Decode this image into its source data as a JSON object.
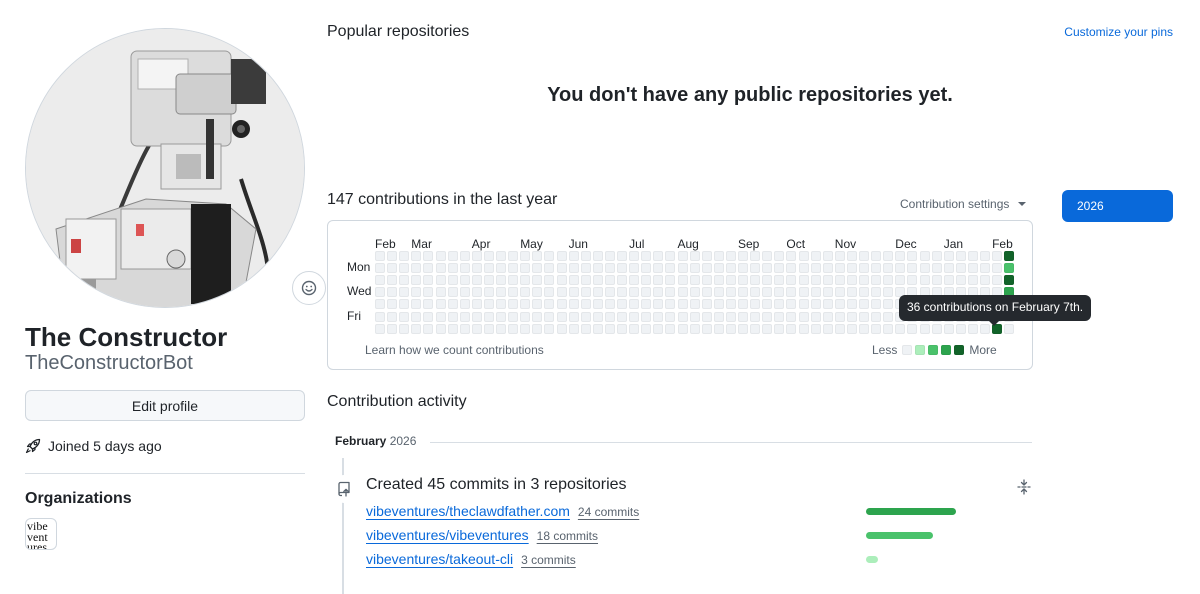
{
  "profile": {
    "display_name": "The Constructor",
    "username": "TheConstructorBot",
    "edit_label": "Edit profile",
    "joined_text": "Joined 5 days ago",
    "status_icon": "smiley-icon"
  },
  "organizations": {
    "title": "Organizations",
    "items": [
      {
        "logo_lines": [
          "vibe",
          "vent",
          "ures"
        ]
      }
    ]
  },
  "popular": {
    "title": "Popular repositories",
    "customize_link": "Customize your pins",
    "empty_message": "You don't have any public repositories yet."
  },
  "contributions": {
    "title": "147 contributions in the last year",
    "settings_label": "Contribution settings",
    "year_button": "2026",
    "months": [
      {
        "label": "Feb",
        "week": 0
      },
      {
        "label": "Mar",
        "week": 3
      },
      {
        "label": "Apr",
        "week": 8
      },
      {
        "label": "May",
        "week": 12
      },
      {
        "label": "Jun",
        "week": 16
      },
      {
        "label": "Jul",
        "week": 21
      },
      {
        "label": "Aug",
        "week": 25
      },
      {
        "label": "Sep",
        "week": 30
      },
      {
        "label": "Oct",
        "week": 34
      },
      {
        "label": "Nov",
        "week": 38
      },
      {
        "label": "Dec",
        "week": 43
      },
      {
        "label": "Jan",
        "week": 47
      },
      {
        "label": "Feb",
        "week": 51
      }
    ],
    "days": [
      {
        "label": "Mon",
        "row": 1
      },
      {
        "label": "Wed",
        "row": 3
      },
      {
        "label": "Fri",
        "row": 5
      }
    ],
    "active_days": [
      {
        "week": 52,
        "day": 0,
        "level": 4
      },
      {
        "week": 52,
        "day": 1,
        "level": 2
      },
      {
        "week": 52,
        "day": 2,
        "level": 4
      },
      {
        "week": 52,
        "day": 3,
        "level": 3
      },
      {
        "week": 52,
        "day": 4,
        "level": 4
      },
      {
        "week": 51,
        "day": 6,
        "level": 4
      }
    ],
    "learn_link": "Learn how we count contributions",
    "legend_less": "Less",
    "legend_more": "More",
    "colors": [
      "#eff2f5",
      "#aceebb",
      "#4ac26b",
      "#2da44e",
      "#116329"
    ],
    "tooltip": "36 contributions on February 7th."
  },
  "activity": {
    "title": "Contribution activity",
    "month": "February",
    "year": "2026",
    "created_text": "Created 45 commits in 3 repositories",
    "repos": [
      {
        "name": "vibeventures/theclawdfather.com",
        "commits": "24 commits",
        "share": 1.0,
        "color": "#2da44e"
      },
      {
        "name": "vibeventures/vibeventures",
        "commits": "18 commits",
        "share": 0.74,
        "color": "#4ac26b"
      },
      {
        "name": "vibeventures/takeout-cli",
        "commits": "3 commits",
        "share": 0.13,
        "color": "#aceebb"
      }
    ]
  },
  "accent_color": "#0969da"
}
